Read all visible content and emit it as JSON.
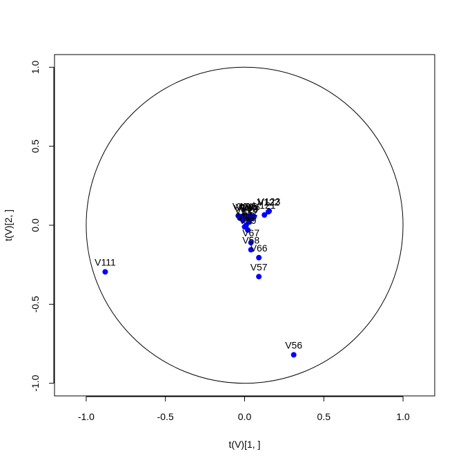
{
  "chart_data": {
    "type": "scatter",
    "title": "",
    "xlabel": "t(V)[1, ]",
    "ylabel": "t(V)[2, ]",
    "xlim": [
      -1.2,
      1.2
    ],
    "ylim": [
      -1.08,
      1.08
    ],
    "x_ticks": [
      -1.0,
      -0.5,
      0.0,
      0.5,
      1.0
    ],
    "y_ticks": [
      -1.0,
      -0.5,
      0.0,
      0.5,
      1.0
    ],
    "x_tick_labels": [
      "-1.0",
      "-0.5",
      "0.0",
      "0.5",
      "1.0"
    ],
    "y_tick_labels": [
      "-1.0",
      "-0.5",
      "0.0",
      "0.5",
      "1.0"
    ],
    "grid": false,
    "legend": "none",
    "point_color": "#0000ff",
    "reference_circle_radius": 1.0,
    "points": [
      {
        "label": "V56",
        "x": 0.31,
        "y": -0.82
      },
      {
        "label": "V111",
        "x": -0.88,
        "y": -0.295
      },
      {
        "label": "V57",
        "x": 0.09,
        "y": -0.325
      },
      {
        "label": "V66",
        "x": 0.09,
        "y": -0.205
      },
      {
        "label": "V58",
        "x": 0.04,
        "y": -0.155
      },
      {
        "label": "V67",
        "x": 0.04,
        "y": -0.11
      },
      {
        "label": "V89",
        "x": 0.02,
        "y": -0.03
      },
      {
        "label": "V88",
        "x": 0.0,
        "y": -0.01
      },
      {
        "label": "V123",
        "x": 0.155,
        "y": 0.09
      },
      {
        "label": "V121",
        "x": 0.125,
        "y": 0.065
      },
      {
        "label": "V122",
        "x": 0.15,
        "y": 0.085
      },
      {
        "label": "V1",
        "x": -0.04,
        "y": 0.06
      },
      {
        "label": "V2",
        "x": -0.02,
        "y": 0.055
      },
      {
        "label": "V3",
        "x": 0.0,
        "y": 0.06
      },
      {
        "label": "V4",
        "x": 0.02,
        "y": 0.055
      },
      {
        "label": "V5",
        "x": 0.04,
        "y": 0.06
      },
      {
        "label": "V6",
        "x": 0.06,
        "y": 0.055
      },
      {
        "label": "V7",
        "x": -0.03,
        "y": 0.045
      },
      {
        "label": "V8",
        "x": 0.01,
        "y": 0.045
      },
      {
        "label": "V9",
        "x": 0.05,
        "y": 0.045
      },
      {
        "label": "V10",
        "x": 0.03,
        "y": 0.04
      },
      {
        "label": "V11",
        "x": -0.01,
        "y": 0.03
      },
      {
        "label": "V12",
        "x": 0.03,
        "y": 0.02
      },
      {
        "label": "V13",
        "x": 0.01,
        "y": 0.0
      }
    ]
  }
}
